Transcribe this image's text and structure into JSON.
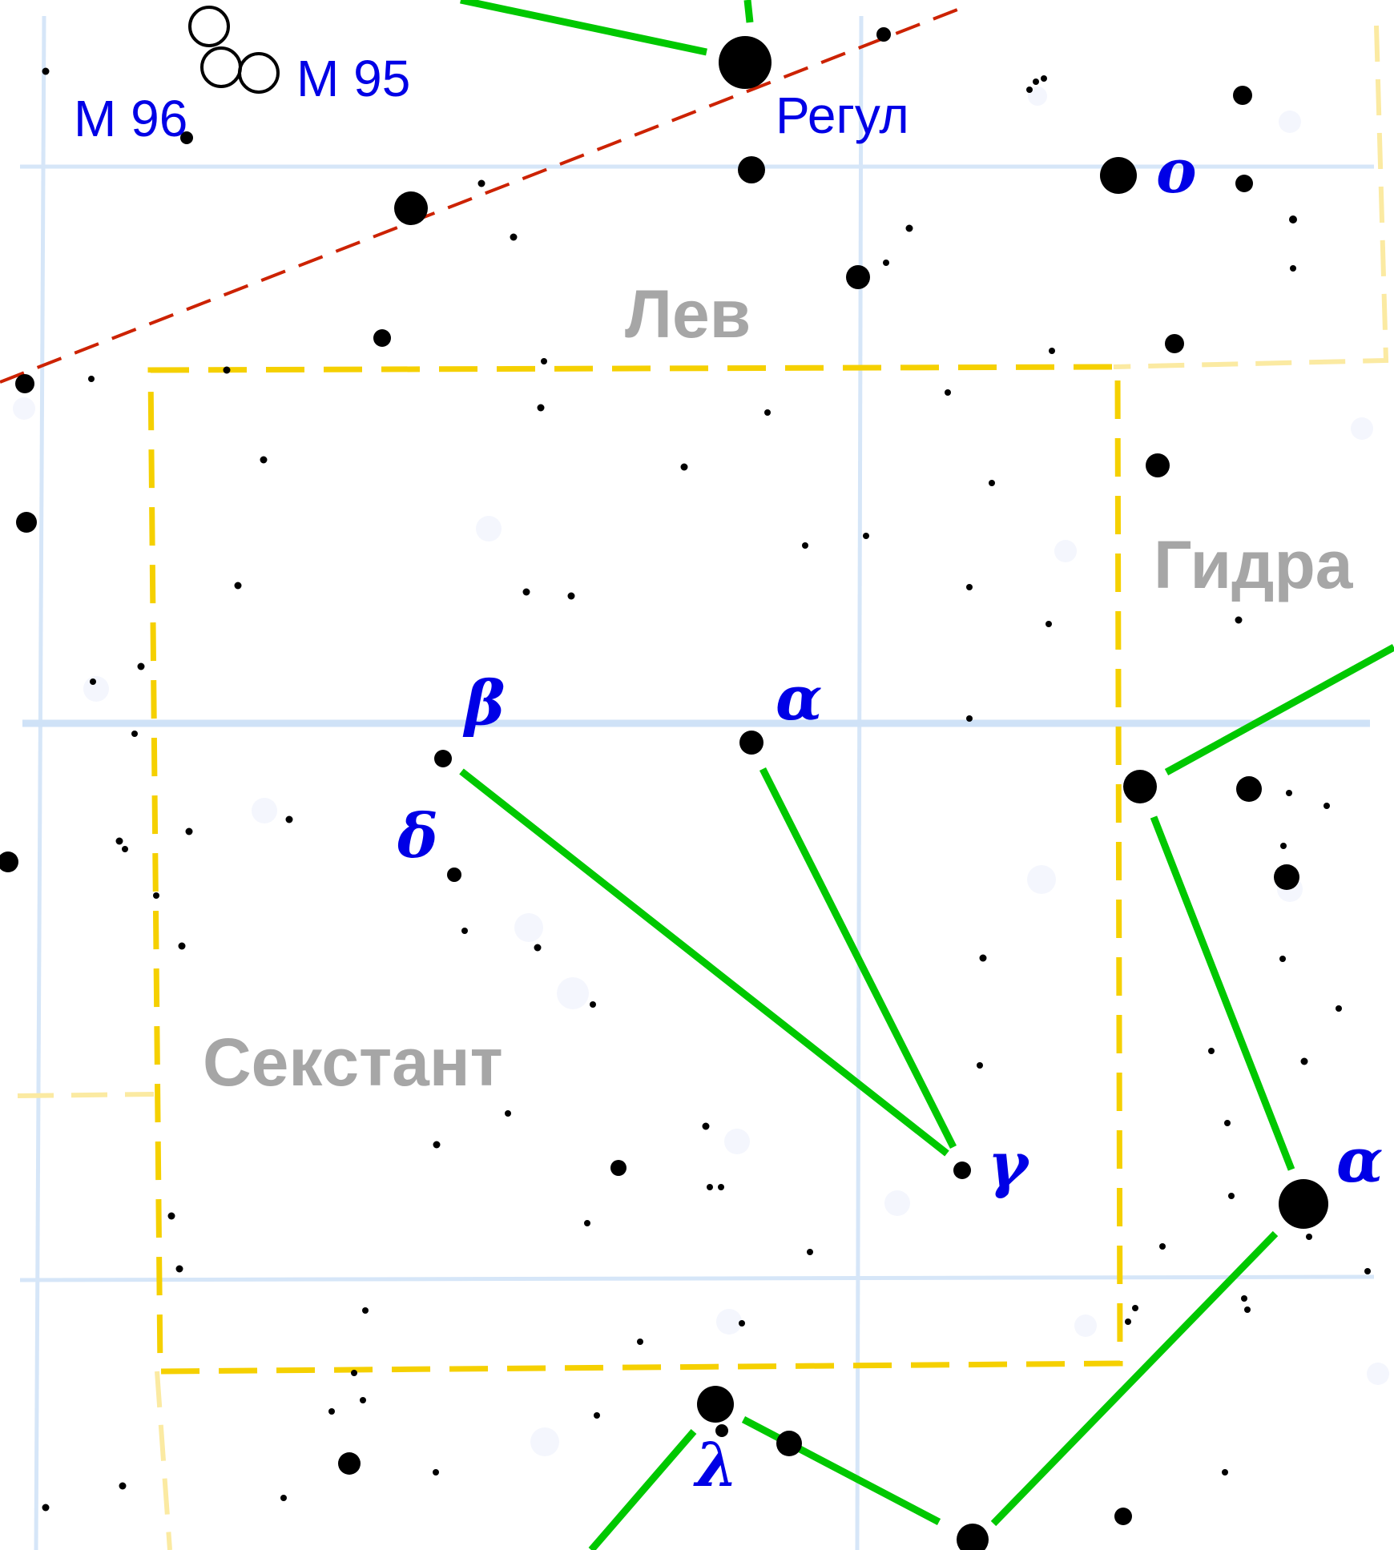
{
  "constellation_labels": {
    "leo": "Лев",
    "hydra": "Гидра",
    "sextans": "Секстант"
  },
  "object_labels": {
    "m95": "M 95",
    "m96": "M 96",
    "regulus": "Регул"
  },
  "star_labels": {
    "omicron_leo": "ο",
    "beta_sex": "β",
    "alpha_sex": "α",
    "delta_sex": "δ",
    "gamma_sex": "γ",
    "alpha_hya": "α",
    "lambda_hya": "λ"
  },
  "colors": {
    "grid": "#d6e6f8",
    "grid_strong": "#cfe2f7",
    "boundary_active": "#f5d000",
    "boundary_other": "#fbeaa2",
    "ecliptic": "#cc2200",
    "figure_lines": "#00c800",
    "stars": "#000000",
    "labels_blue": "#0000e6",
    "constellation_names": "#a6a6a6"
  }
}
